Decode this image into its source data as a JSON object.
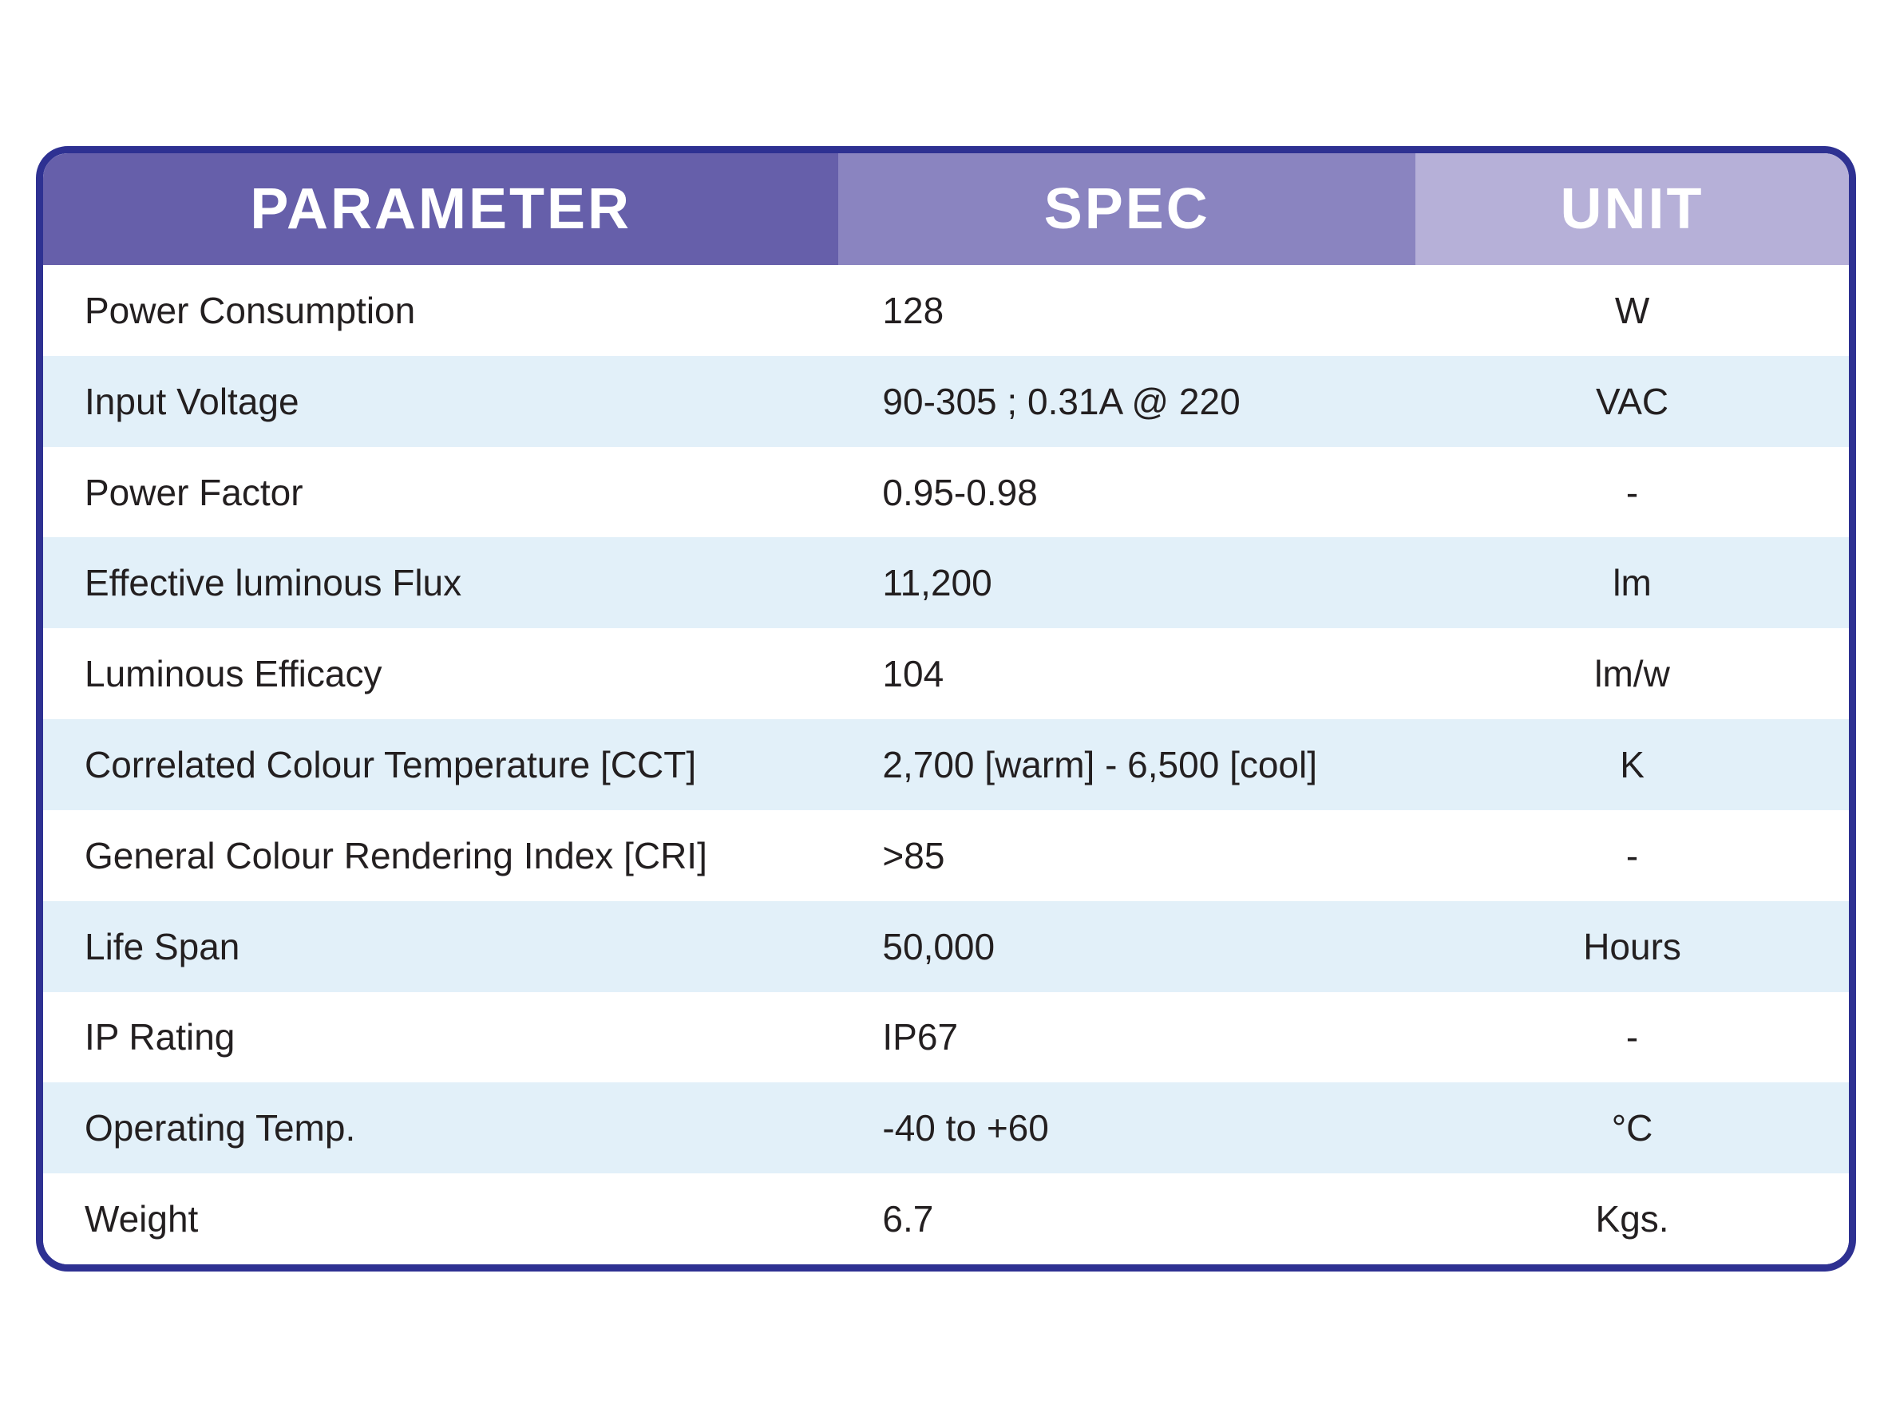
{
  "table": {
    "colors": {
      "border": "#2E3192",
      "stripe": "#E2F0F9",
      "text": "#231F20",
      "header_text": "#FFFFFF"
    },
    "columns": [
      {
        "label": "PARAMETER",
        "bg": "#665FAA"
      },
      {
        "label": "SPEC",
        "bg": "#8A84C0"
      },
      {
        "label": "UNIT",
        "bg": "#B6B0D8"
      }
    ],
    "rows": [
      {
        "parameter": "Power Consumption",
        "spec": "128",
        "unit": "W"
      },
      {
        "parameter": "Input Voltage",
        "spec": "90-305 ; 0.31A @ 220",
        "unit": "VAC"
      },
      {
        "parameter": "Power Factor",
        "spec": "0.95-0.98",
        "unit": "-"
      },
      {
        "parameter": "Effective luminous Flux",
        "spec": "11,200",
        "unit": "lm"
      },
      {
        "parameter": "Luminous Efficacy",
        "spec": "104",
        "unit": "lm/w"
      },
      {
        "parameter": "Correlated Colour Temperature [CCT]",
        "spec": "2,700  [warm] - 6,500 [cool]",
        "unit": "K"
      },
      {
        "parameter": "General Colour Rendering Index [CRI]",
        "spec": ">85",
        "unit": "-"
      },
      {
        "parameter": "Life Span",
        "spec": "50,000",
        "unit": "Hours"
      },
      {
        "parameter": "IP Rating",
        "spec": "IP67",
        "unit": "-"
      },
      {
        "parameter": "Operating Temp.",
        "spec": "-40 to +60",
        "unit": "°C"
      },
      {
        "parameter": "Weight",
        "spec": "6.7",
        "unit": "Kgs."
      }
    ]
  }
}
